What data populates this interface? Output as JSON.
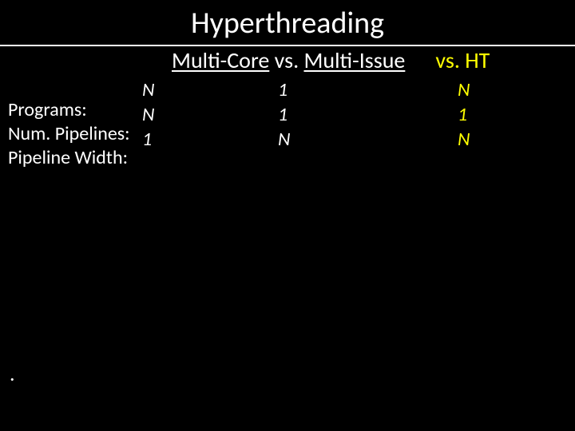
{
  "title": "Hyperthreading",
  "subtitle": {
    "left_underlined": "Multi-Core",
    "middle": " vs. ",
    "right_underlined": "Multi-Issue",
    "ht": "vs. HT"
  },
  "labels": {
    "row1": "Programs:",
    "row2": "Num. Pipelines:",
    "row3": "Pipeline Width:"
  },
  "cols": {
    "mc": {
      "r1": "N",
      "r2": "N",
      "r3": "1"
    },
    "mi": {
      "r1": "1",
      "r2": "1",
      "r3": "N"
    },
    "ht": {
      "r1": "N",
      "r2": "1",
      "r3": "N"
    }
  },
  "dot": ".",
  "colors": {
    "background": "#000000",
    "text": "#ffffff",
    "accent": "#ffff00"
  }
}
